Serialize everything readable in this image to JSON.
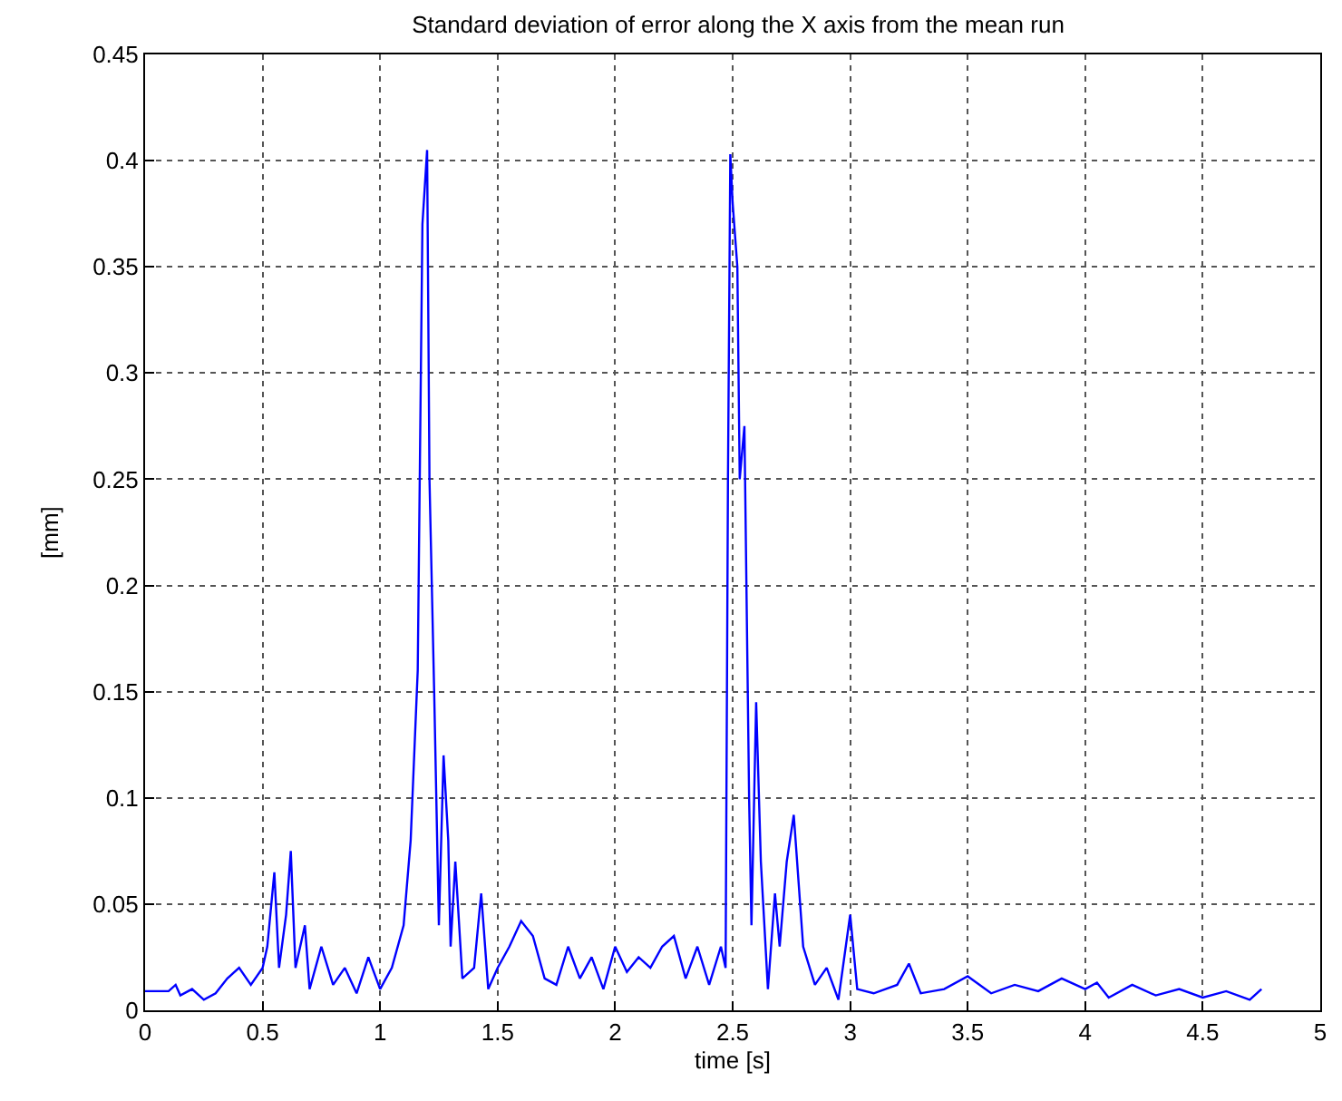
{
  "chart_data": {
    "type": "line",
    "title": "Standard deviation of error along the X axis from the mean run",
    "xlabel": "time [s]",
    "ylabel": "[mm]",
    "xlim": [
      0,
      5
    ],
    "ylim": [
      0,
      0.45
    ],
    "xticks": [
      0,
      0.5,
      1,
      1.5,
      2,
      2.5,
      3,
      3.5,
      4,
      4.5,
      5
    ],
    "yticks": [
      0,
      0.05,
      0.1,
      0.15,
      0.2,
      0.25,
      0.3,
      0.35,
      0.4,
      0.45
    ],
    "grid": true,
    "marker": "none",
    "line_style": "solid",
    "series": [
      {
        "color": "#0000ff",
        "x": [
          0,
          0.1,
          0.13,
          0.15,
          0.2,
          0.25,
          0.3,
          0.35,
          0.4,
          0.45,
          0.5,
          0.52,
          0.55,
          0.57,
          0.6,
          0.62,
          0.64,
          0.68,
          0.7,
          0.75,
          0.8,
          0.85,
          0.9,
          0.95,
          1.0,
          1.05,
          1.1,
          1.13,
          1.16,
          1.18,
          1.2,
          1.21,
          1.23,
          1.25,
          1.27,
          1.29,
          1.3,
          1.32,
          1.35,
          1.4,
          1.43,
          1.46,
          1.5,
          1.55,
          1.6,
          1.65,
          1.7,
          1.75,
          1.8,
          1.85,
          1.9,
          1.95,
          2.0,
          2.05,
          2.1,
          2.15,
          2.2,
          2.25,
          2.3,
          2.35,
          2.4,
          2.45,
          2.47,
          2.48,
          2.49,
          2.5,
          2.52,
          2.53,
          2.55,
          2.57,
          2.58,
          2.6,
          2.62,
          2.65,
          2.68,
          2.7,
          2.73,
          2.76,
          2.8,
          2.85,
          2.9,
          2.95,
          3.0,
          3.03,
          3.1,
          3.2,
          3.25,
          3.3,
          3.4,
          3.5,
          3.6,
          3.7,
          3.8,
          3.9,
          4.0,
          4.05,
          4.1,
          4.2,
          4.3,
          4.4,
          4.5,
          4.6,
          4.7,
          4.75
        ],
        "values": [
          0.009,
          0.009,
          0.012,
          0.007,
          0.01,
          0.005,
          0.008,
          0.015,
          0.02,
          0.012,
          0.02,
          0.03,
          0.065,
          0.02,
          0.045,
          0.075,
          0.02,
          0.04,
          0.01,
          0.03,
          0.012,
          0.02,
          0.008,
          0.025,
          0.01,
          0.02,
          0.04,
          0.08,
          0.16,
          0.37,
          0.405,
          0.25,
          0.15,
          0.04,
          0.12,
          0.08,
          0.03,
          0.07,
          0.015,
          0.02,
          0.055,
          0.01,
          0.02,
          0.03,
          0.042,
          0.035,
          0.015,
          0.012,
          0.03,
          0.015,
          0.025,
          0.01,
          0.03,
          0.018,
          0.025,
          0.02,
          0.03,
          0.035,
          0.015,
          0.03,
          0.012,
          0.03,
          0.02,
          0.25,
          0.403,
          0.38,
          0.35,
          0.25,
          0.275,
          0.1,
          0.04,
          0.145,
          0.07,
          0.01,
          0.055,
          0.03,
          0.07,
          0.092,
          0.03,
          0.012,
          0.02,
          0.005,
          0.045,
          0.01,
          0.008,
          0.012,
          0.022,
          0.008,
          0.01,
          0.016,
          0.008,
          0.012,
          0.009,
          0.015,
          0.01,
          0.013,
          0.006,
          0.012,
          0.007,
          0.01,
          0.006,
          0.009,
          0.005,
          0.01
        ]
      }
    ]
  }
}
